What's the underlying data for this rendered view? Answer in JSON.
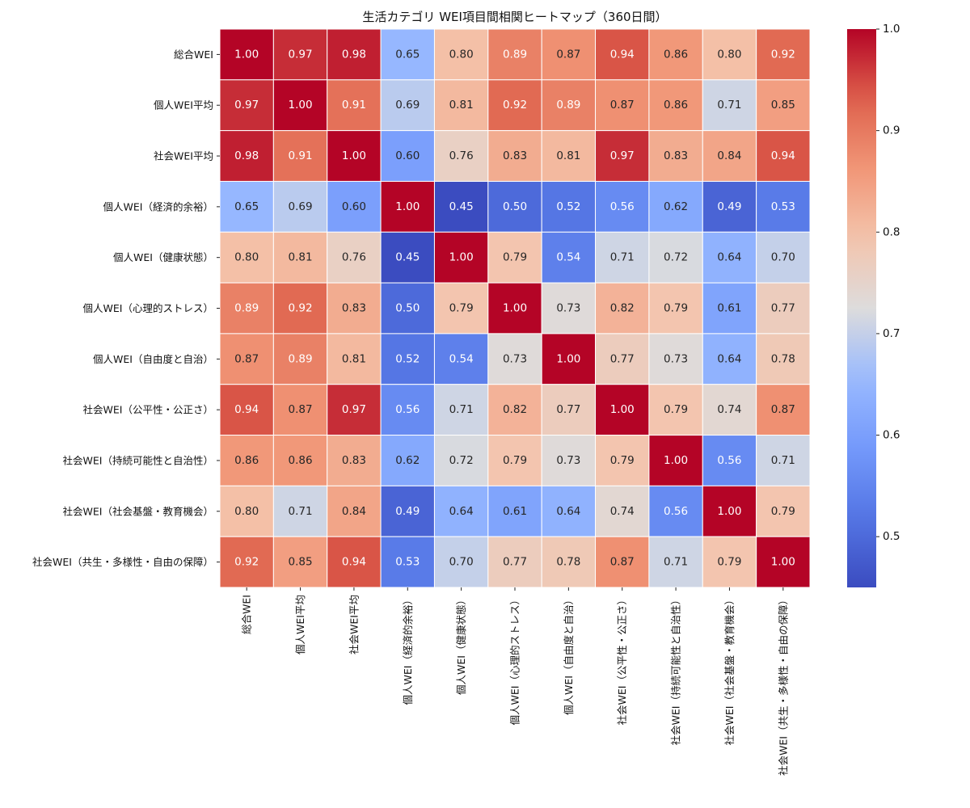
{
  "chart_data": {
    "type": "heatmap",
    "title": "生活カテゴリ WEI項目間相関ヒートマップ（360日間）",
    "xlabel": "",
    "ylabel": "",
    "labels": [
      "総合WEI",
      "個人WEI平均",
      "社会WEI平均",
      "個人WEI（経済的余裕）",
      "個人WEI（健康状態）",
      "個人WEI（心理的ストレス）",
      "個人WEI（自由度と自治）",
      "社会WEI（公平性・公正さ）",
      "社会WEI（持続可能性と自治性）",
      "社会WEI（社会基盤・教育機会）",
      "社会WEI（共生・多様性・自由の保障）"
    ],
    "matrix": [
      [
        1.0,
        0.97,
        0.98,
        0.65,
        0.8,
        0.89,
        0.87,
        0.94,
        0.86,
        0.8,
        0.92
      ],
      [
        0.97,
        1.0,
        0.91,
        0.69,
        0.81,
        0.92,
        0.89,
        0.87,
        0.86,
        0.71,
        0.85
      ],
      [
        0.98,
        0.91,
        1.0,
        0.6,
        0.76,
        0.83,
        0.81,
        0.97,
        0.83,
        0.84,
        0.94
      ],
      [
        0.65,
        0.69,
        0.6,
        1.0,
        0.45,
        0.5,
        0.52,
        0.56,
        0.62,
        0.49,
        0.53
      ],
      [
        0.8,
        0.81,
        0.76,
        0.45,
        1.0,
        0.79,
        0.54,
        0.71,
        0.72,
        0.64,
        0.7
      ],
      [
        0.89,
        0.92,
        0.83,
        0.5,
        0.79,
        1.0,
        0.73,
        0.82,
        0.79,
        0.61,
        0.77
      ],
      [
        0.87,
        0.89,
        0.81,
        0.52,
        0.54,
        0.73,
        1.0,
        0.77,
        0.73,
        0.64,
        0.78
      ],
      [
        0.94,
        0.87,
        0.97,
        0.56,
        0.71,
        0.82,
        0.77,
        1.0,
        0.79,
        0.74,
        0.87
      ],
      [
        0.86,
        0.86,
        0.83,
        0.62,
        0.72,
        0.79,
        0.73,
        0.79,
        1.0,
        0.56,
        0.71
      ],
      [
        0.8,
        0.71,
        0.84,
        0.49,
        0.64,
        0.61,
        0.64,
        0.74,
        0.56,
        1.0,
        0.79
      ],
      [
        0.92,
        0.85,
        0.94,
        0.53,
        0.7,
        0.77,
        0.78,
        0.87,
        0.71,
        0.79,
        1.0
      ]
    ],
    "value_format": "2 decimals",
    "vmin": 0.45,
    "vmax": 1.0,
    "colormap": "coolwarm",
    "colorbar": {
      "ticks": [
        0.5,
        0.6,
        0.7,
        0.8,
        0.9,
        1.0
      ],
      "tick_labels": [
        "0.5",
        "0.6",
        "0.7",
        "0.8",
        "0.9",
        "1.0"
      ],
      "placement": "right"
    },
    "annotations": "cell values shown",
    "grid": false,
    "legend": "none"
  }
}
